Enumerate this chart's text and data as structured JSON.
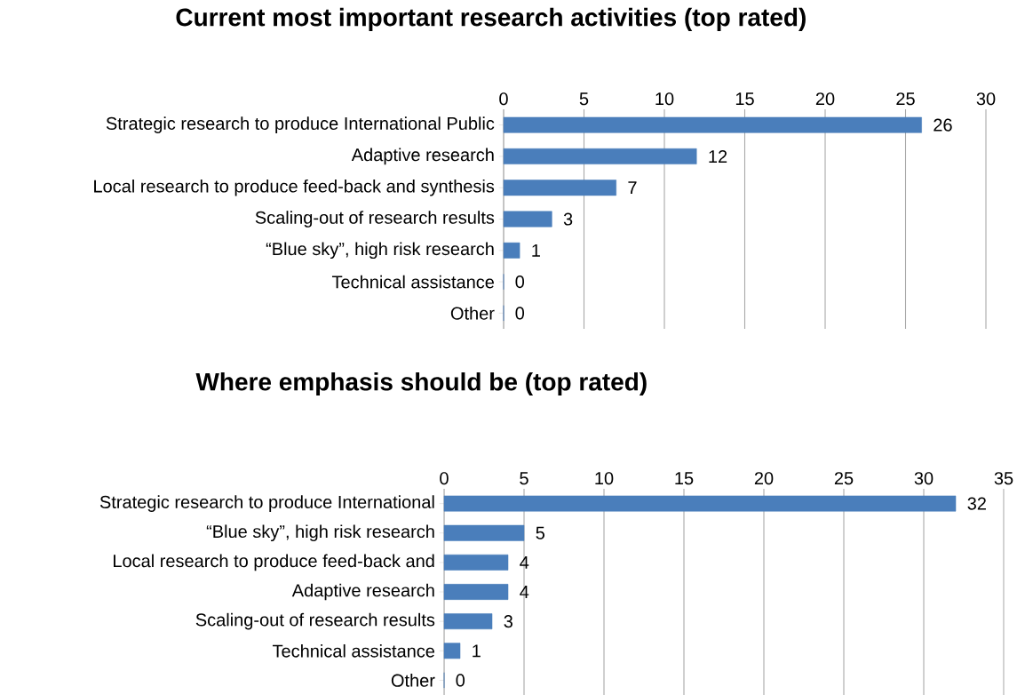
{
  "chart_data": [
    {
      "type": "bar",
      "orientation": "horizontal",
      "title": "Current most important research activities (top rated)",
      "categories": [
        "Strategic research to produce International Public",
        "Adaptive research",
        "Local research to produce feed-back and synthesis",
        "Scaling-out of research results",
        "“Blue sky”, high risk research",
        "Technical assistance",
        "Other"
      ],
      "values": [
        26,
        12,
        7,
        3,
        1,
        0,
        0
      ],
      "color": "#4a7ebb",
      "xlim": [
        0,
        30
      ],
      "xticks": [
        0,
        5,
        10,
        15,
        20,
        25,
        30
      ],
      "grid": "x",
      "data_labels": true
    },
    {
      "type": "bar",
      "orientation": "horizontal",
      "title": "Where emphasis should be (top rated)",
      "categories": [
        "Strategic research to produce International",
        "“Blue sky”, high risk research",
        "Local research to produce feed-back and",
        "Adaptive research",
        "Scaling-out of research results",
        "Technical assistance",
        "Other"
      ],
      "values": [
        32,
        5,
        4,
        4,
        3,
        1,
        0
      ],
      "color": "#4a7ebb",
      "xlim": [
        0,
        35
      ],
      "xticks": [
        0,
        5,
        10,
        15,
        20,
        25,
        30,
        35
      ],
      "grid": "x",
      "data_labels": true
    }
  ]
}
